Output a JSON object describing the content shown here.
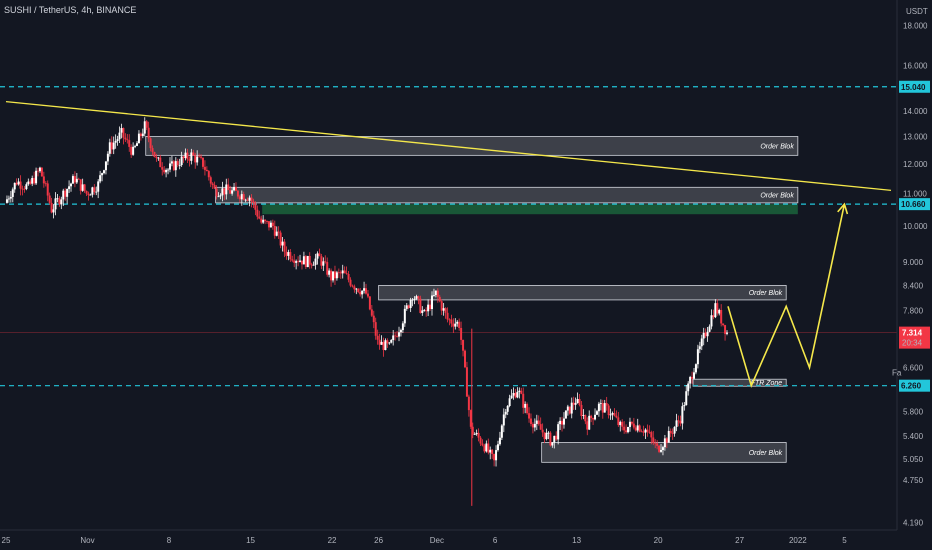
{
  "header": {
    "title": "SUSHI / TetherUS, 4h, BINANCE",
    "currency": "USDT"
  },
  "colors": {
    "background": "#131722",
    "up": "#ffffff",
    "down": "#f23645",
    "level_line": "#22c6da",
    "trendline": "#f5e84b",
    "projection": "#f5e84b",
    "zone_fill": "rgba(255,255,255,0.18)",
    "zone_stroke": "#d1d4dc",
    "green_zone": "#1b5e3a",
    "price_tag": "#f23645",
    "level_tag": "#22c6da"
  },
  "chart_data": {
    "type": "candlestick",
    "title": "SUSHI / TetherUS, 4h, BINANCE",
    "ylabel": "USDT",
    "y_scale": "log",
    "ylim": [
      4.1,
      18.4
    ],
    "y_ticks": [
      "18.000",
      "16.000",
      "14.000",
      "13.000",
      "12.000",
      "11.000",
      "10.000",
      "9.000",
      "8.400",
      "7.800",
      "6.600",
      "5.800",
      "5.400",
      "5.050",
      "4.750",
      "4.190"
    ],
    "y_tick_values": [
      18,
      16,
      14,
      13,
      12,
      11,
      10,
      9,
      8.4,
      7.8,
      6.6,
      5.8,
      5.4,
      5.05,
      4.75,
      4.19
    ],
    "x_ticks": [
      "25",
      "Nov",
      "8",
      "15",
      "22",
      "26",
      "Dec",
      "6",
      "13",
      "20",
      "27",
      "2022",
      "5"
    ],
    "x_tick_dates": [
      "2021-10-25",
      "2021-11-01",
      "2021-11-08",
      "2021-11-15",
      "2021-11-22",
      "2021-11-26",
      "2021-12-01",
      "2021-12-06",
      "2021-12-13",
      "2021-12-20",
      "2021-12-27",
      "2022-01-01",
      "2022-01-05"
    ],
    "x_range": [
      "2021-10-25",
      "2022-01-09"
    ],
    "close_path": [
      {
        "t": "2021-10-25",
        "v": 10.7
      },
      {
        "t": "2021-10-26",
        "v": 11.4
      },
      {
        "t": "2021-10-27",
        "v": 11.2
      },
      {
        "t": "2021-10-28",
        "v": 11.8
      },
      {
        "t": "2021-10-29",
        "v": 10.5
      },
      {
        "t": "2021-10-30",
        "v": 11.0
      },
      {
        "t": "2021-10-31",
        "v": 11.5
      },
      {
        "t": "2021-11-01",
        "v": 11.0
      },
      {
        "t": "2021-11-02",
        "v": 11.3
      },
      {
        "t": "2021-11-03",
        "v": 12.6
      },
      {
        "t": "2021-11-04",
        "v": 13.1
      },
      {
        "t": "2021-11-05",
        "v": 12.4
      },
      {
        "t": "2021-11-06",
        "v": 13.4
      },
      {
        "t": "2021-11-07",
        "v": 12.1
      },
      {
        "t": "2021-11-08",
        "v": 11.8
      },
      {
        "t": "2021-11-09",
        "v": 12.1
      },
      {
        "t": "2021-11-10",
        "v": 12.3
      },
      {
        "t": "2021-11-11",
        "v": 12.0
      },
      {
        "t": "2021-11-12",
        "v": 11.1
      },
      {
        "t": "2021-11-13",
        "v": 11.1
      },
      {
        "t": "2021-11-14",
        "v": 11.0
      },
      {
        "t": "2021-11-15",
        "v": 10.9
      },
      {
        "t": "2021-11-16",
        "v": 10.1
      },
      {
        "t": "2021-11-17",
        "v": 10.0
      },
      {
        "t": "2021-11-18",
        "v": 9.3
      },
      {
        "t": "2021-11-19",
        "v": 9.1
      },
      {
        "t": "2021-11-20",
        "v": 9.0
      },
      {
        "t": "2021-11-21",
        "v": 9.1
      },
      {
        "t": "2021-11-22",
        "v": 8.6
      },
      {
        "t": "2021-11-23",
        "v": 8.7
      },
      {
        "t": "2021-11-24",
        "v": 8.4
      },
      {
        "t": "2021-11-25",
        "v": 8.2
      },
      {
        "t": "2021-11-26",
        "v": 7.1
      },
      {
        "t": "2021-11-27",
        "v": 7.0
      },
      {
        "t": "2021-11-28",
        "v": 7.5
      },
      {
        "t": "2021-11-29",
        "v": 8.2
      },
      {
        "t": "2021-11-30",
        "v": 7.7
      },
      {
        "t": "2021-12-01",
        "v": 8.2
      },
      {
        "t": "2021-12-02",
        "v": 7.6
      },
      {
        "t": "2021-12-03",
        "v": 7.5
      },
      {
        "t": "2021-12-04",
        "v": 5.5
      },
      {
        "t": "2021-12-05",
        "v": 5.3
      },
      {
        "t": "2021-12-06",
        "v": 5.0
      },
      {
        "t": "2021-12-07",
        "v": 5.9
      },
      {
        "t": "2021-12-08",
        "v": 6.2
      },
      {
        "t": "2021-12-09",
        "v": 5.7
      },
      {
        "t": "2021-12-10",
        "v": 5.5
      },
      {
        "t": "2021-12-11",
        "v": 5.3
      },
      {
        "t": "2021-12-12",
        "v": 5.7
      },
      {
        "t": "2021-12-13",
        "v": 6.0
      },
      {
        "t": "2021-12-14",
        "v": 5.6
      },
      {
        "t": "2021-12-15",
        "v": 5.9
      },
      {
        "t": "2021-12-16",
        "v": 5.8
      },
      {
        "t": "2021-12-17",
        "v": 5.5
      },
      {
        "t": "2021-12-18",
        "v": 5.6
      },
      {
        "t": "2021-12-19",
        "v": 5.5
      },
      {
        "t": "2021-12-20",
        "v": 5.2
      },
      {
        "t": "2021-12-21",
        "v": 5.4
      },
      {
        "t": "2021-12-22",
        "v": 5.7
      },
      {
        "t": "2021-12-23",
        "v": 6.5
      },
      {
        "t": "2021-12-24",
        "v": 7.2
      },
      {
        "t": "2021-12-25",
        "v": 7.9
      },
      {
        "t": "2021-12-26",
        "v": 7.31
      }
    ],
    "series": [
      {
        "name": "Projection",
        "points": [
          {
            "t": "2021-12-26",
            "v": 7.9
          },
          {
            "t": "2021-12-28",
            "v": 6.26
          },
          {
            "t": "2021-12-31",
            "v": 7.9
          },
          {
            "t": "2022-01-02",
            "v": 6.6
          },
          {
            "t": "2022-01-05",
            "v": 10.66
          }
        ]
      }
    ],
    "trendline": {
      "start": {
        "t": "2021-10-25",
        "v": 14.4
      },
      "end": {
        "t": "2022-01-09",
        "v": 11.1
      }
    },
    "levels": [
      {
        "label": "15.040",
        "value": 15.04
      },
      {
        "label": "10.660",
        "value": 10.66
      },
      {
        "label": "6.260",
        "value": 6.26
      }
    ],
    "zones": [
      {
        "label": "Order Blok",
        "start": "2021-11-06",
        "end": "2022-01-01",
        "low": 12.3,
        "high": 13.0
      },
      {
        "label": "Order Blok",
        "start": "2021-11-12",
        "end": "2022-01-01",
        "low": 10.7,
        "high": 11.2
      },
      {
        "label": "",
        "start": "2021-11-16",
        "end": "2022-01-01",
        "low": 10.35,
        "high": 10.66,
        "green": true
      },
      {
        "label": "Order Blok",
        "start": "2021-11-26",
        "end": "2021-12-31",
        "low": 8.05,
        "high": 8.4
      },
      {
        "label": "FTR Zone",
        "start": "2021-12-23",
        "end": "2021-12-31",
        "low": 6.25,
        "high": 6.38
      },
      {
        "label": "Order Blok",
        "start": "2021-12-10",
        "end": "2021-12-31",
        "low": 5.0,
        "high": 5.3
      }
    ],
    "last_price": {
      "value": "7.314",
      "countdown": "20:34"
    },
    "side_marker": "Fa"
  }
}
